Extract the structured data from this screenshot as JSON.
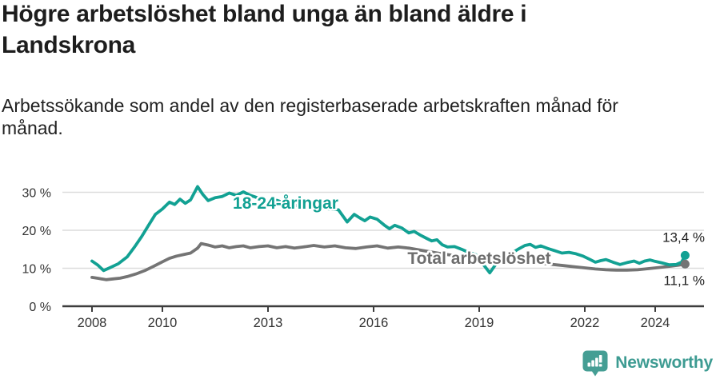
{
  "footer": {
    "brand": "Newsworthy",
    "logo_icon": "bar-chart-speech-bubble-icon"
  },
  "colors": {
    "young_line": "#12a193",
    "total_line": "#747474",
    "total_label": "#6d6d6d",
    "axis": "#3d3d3d",
    "grid": "#dcdcdc",
    "tick_text": "#333333",
    "text": "#1d1d1d",
    "brand_teal": "#3d9b92",
    "logo_teal": "#459e94"
  },
  "chart_data": {
    "type": "line",
    "title": "Högre arbetslöshet bland unga än bland äldre i Landskrona",
    "subtitle": "Arbetssökande som andel av den registerbaserade arbetskraften månad för månad.",
    "unit": "%",
    "grid": "horizontal",
    "legend_position": "inline-labels",
    "x_axis": {
      "ticks": [
        "2008",
        "2010",
        "2013",
        "2016",
        "2019",
        "2022",
        "2024"
      ],
      "range": [
        2008,
        2024.9
      ]
    },
    "y_axis": {
      "range": [
        0,
        33
      ],
      "ticks": [
        {
          "value": 0,
          "label": "0 %"
        },
        {
          "value": 10,
          "label": "10 %"
        },
        {
          "value": 20,
          "label": "20 %"
        },
        {
          "value": 30,
          "label": "30 %"
        }
      ]
    },
    "series": [
      {
        "id": "total",
        "name": "Total arbetslöshet",
        "color": "#747474",
        "label_color": "#6d6d6d",
        "label_at": [
          2019.0,
          11.2
        ],
        "end_value": 11.1,
        "end_label": "11,1 %",
        "end_label_offset": 26,
        "points": [
          [
            2008.0,
            7.6
          ],
          [
            2008.2,
            7.3
          ],
          [
            2008.4,
            7.0
          ],
          [
            2008.6,
            7.2
          ],
          [
            2008.8,
            7.4
          ],
          [
            2009.0,
            7.8
          ],
          [
            2009.25,
            8.5
          ],
          [
            2009.5,
            9.4
          ],
          [
            2009.75,
            10.5
          ],
          [
            2010.0,
            11.7
          ],
          [
            2010.2,
            12.6
          ],
          [
            2010.4,
            13.2
          ],
          [
            2010.6,
            13.6
          ],
          [
            2010.8,
            14.0
          ],
          [
            2011.0,
            15.3
          ],
          [
            2011.1,
            16.5
          ],
          [
            2011.3,
            16.1
          ],
          [
            2011.5,
            15.6
          ],
          [
            2011.7,
            15.9
          ],
          [
            2011.9,
            15.4
          ],
          [
            2012.1,
            15.7
          ],
          [
            2012.3,
            15.9
          ],
          [
            2012.5,
            15.4
          ],
          [
            2012.75,
            15.7
          ],
          [
            2013.0,
            15.9
          ],
          [
            2013.25,
            15.4
          ],
          [
            2013.5,
            15.7
          ],
          [
            2013.75,
            15.3
          ],
          [
            2014.0,
            15.6
          ],
          [
            2014.3,
            16.0
          ],
          [
            2014.6,
            15.6
          ],
          [
            2014.9,
            15.9
          ],
          [
            2015.2,
            15.4
          ],
          [
            2015.5,
            15.2
          ],
          [
            2015.8,
            15.6
          ],
          [
            2016.1,
            15.9
          ],
          [
            2016.4,
            15.3
          ],
          [
            2016.7,
            15.6
          ],
          [
            2017.0,
            15.3
          ],
          [
            2017.5,
            14.5
          ],
          [
            2018.0,
            13.7
          ],
          [
            2018.5,
            13.1
          ],
          [
            2019.0,
            12.7
          ],
          [
            2019.5,
            12.3
          ],
          [
            2019.9,
            12.0
          ],
          [
            2020.2,
            11.8
          ],
          [
            2020.5,
            11.5
          ],
          [
            2020.8,
            11.3
          ],
          [
            2021.1,
            11.0
          ],
          [
            2021.4,
            10.7
          ],
          [
            2021.7,
            10.4
          ],
          [
            2022.0,
            10.1
          ],
          [
            2022.3,
            9.8
          ],
          [
            2022.6,
            9.6
          ],
          [
            2022.9,
            9.5
          ],
          [
            2023.2,
            9.5
          ],
          [
            2023.5,
            9.6
          ],
          [
            2023.8,
            9.9
          ],
          [
            2024.1,
            10.2
          ],
          [
            2024.4,
            10.5
          ],
          [
            2024.65,
            10.8
          ],
          [
            2024.85,
            11.1
          ]
        ]
      },
      {
        "id": "young",
        "name": "18-24-åringar",
        "color": "#12a193",
        "label_color": "#12a193",
        "label_at": [
          2013.5,
          25.7
        ],
        "end_value": 13.4,
        "end_label": "13,4 %",
        "end_label_offset": -17,
        "points": [
          [
            2008.0,
            11.9
          ],
          [
            2008.17,
            10.8
          ],
          [
            2008.33,
            9.4
          ],
          [
            2008.5,
            10.1
          ],
          [
            2008.75,
            11.2
          ],
          [
            2009.0,
            13.0
          ],
          [
            2009.2,
            15.5
          ],
          [
            2009.4,
            18.2
          ],
          [
            2009.6,
            21.2
          ],
          [
            2009.8,
            24.2
          ],
          [
            2010.0,
            25.6
          ],
          [
            2010.2,
            27.4
          ],
          [
            2010.35,
            26.8
          ],
          [
            2010.5,
            28.2
          ],
          [
            2010.65,
            27.1
          ],
          [
            2010.8,
            28.0
          ],
          [
            2011.0,
            31.5
          ],
          [
            2011.15,
            29.4
          ],
          [
            2011.3,
            27.8
          ],
          [
            2011.5,
            28.6
          ],
          [
            2011.7,
            28.9
          ],
          [
            2011.9,
            29.8
          ],
          [
            2012.1,
            29.2
          ],
          [
            2012.3,
            30.1
          ],
          [
            2012.5,
            29.2
          ],
          [
            2012.75,
            28.4
          ],
          [
            2013.0,
            27.6
          ],
          [
            2013.25,
            27.9
          ],
          [
            2013.5,
            27.1
          ],
          [
            2013.75,
            26.6
          ],
          [
            2014.0,
            26.1
          ],
          [
            2014.25,
            26.4
          ],
          [
            2014.5,
            25.8
          ],
          [
            2014.75,
            25.6
          ],
          [
            2015.0,
            25.4
          ],
          [
            2015.25,
            22.2
          ],
          [
            2015.45,
            24.2
          ],
          [
            2015.6,
            23.3
          ],
          [
            2015.75,
            22.5
          ],
          [
            2015.9,
            23.5
          ],
          [
            2016.1,
            22.9
          ],
          [
            2016.3,
            21.4
          ],
          [
            2016.45,
            20.4
          ],
          [
            2016.6,
            21.3
          ],
          [
            2016.8,
            20.6
          ],
          [
            2017.0,
            19.3
          ],
          [
            2017.15,
            19.7
          ],
          [
            2017.35,
            18.6
          ],
          [
            2017.5,
            17.9
          ],
          [
            2017.65,
            17.2
          ],
          [
            2017.8,
            17.5
          ],
          [
            2017.95,
            16.2
          ],
          [
            2018.1,
            15.6
          ],
          [
            2018.3,
            15.7
          ],
          [
            2018.5,
            15.0
          ],
          [
            2018.7,
            14.2
          ],
          [
            2018.9,
            13.6
          ],
          [
            2019.1,
            11.2
          ],
          [
            2019.3,
            8.8
          ],
          [
            2019.5,
            11.4
          ],
          [
            2019.7,
            12.7
          ],
          [
            2019.9,
            13.8
          ],
          [
            2020.1,
            15.0
          ],
          [
            2020.3,
            16.0
          ],
          [
            2020.45,
            16.3
          ],
          [
            2020.6,
            15.5
          ],
          [
            2020.75,
            15.9
          ],
          [
            2020.95,
            15.2
          ],
          [
            2021.15,
            14.6
          ],
          [
            2021.35,
            14.0
          ],
          [
            2021.55,
            14.2
          ],
          [
            2021.75,
            13.8
          ],
          [
            2021.95,
            13.2
          ],
          [
            2022.15,
            12.3
          ],
          [
            2022.3,
            11.6
          ],
          [
            2022.45,
            12.0
          ],
          [
            2022.6,
            12.3
          ],
          [
            2022.8,
            11.6
          ],
          [
            2023.0,
            11.0
          ],
          [
            2023.2,
            11.5
          ],
          [
            2023.4,
            11.9
          ],
          [
            2023.55,
            11.3
          ],
          [
            2023.7,
            11.9
          ],
          [
            2023.85,
            12.2
          ],
          [
            2024.0,
            11.8
          ],
          [
            2024.2,
            11.4
          ],
          [
            2024.4,
            10.9
          ],
          [
            2024.6,
            11.0
          ],
          [
            2024.75,
            11.6
          ],
          [
            2024.85,
            13.4
          ]
        ]
      }
    ]
  }
}
